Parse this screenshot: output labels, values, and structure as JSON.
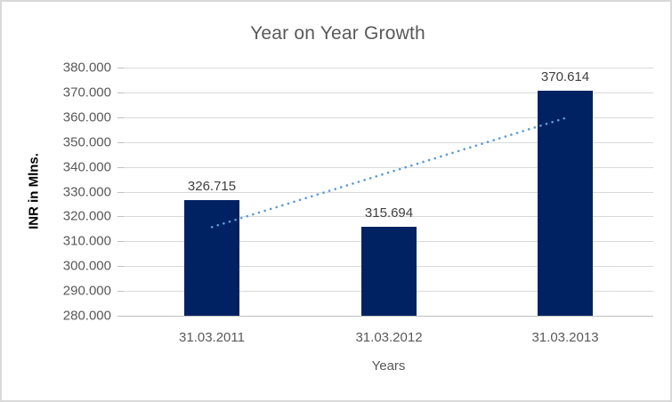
{
  "chart_data": {
    "type": "bar",
    "title": "Year on Year Growth",
    "xlabel": "Years",
    "ylabel": "INR in Mlns.",
    "categories": [
      "31.03.2011",
      "31.03.2012",
      "31.03.2013"
    ],
    "values": [
      326.715,
      315.694,
      370.614
    ],
    "value_labels": [
      "326.715",
      "315.694",
      "370.614"
    ],
    "ylim": [
      280,
      380
    ],
    "ytick_step": 10,
    "ytick_labels_top_to_bottom": [
      "380.000",
      "370.000",
      "360.000",
      "350.000",
      "340.000",
      "330.000",
      "320.000",
      "310.000",
      "300.000",
      "290.000",
      "280.000"
    ],
    "grid": true,
    "legend": "none",
    "trendline": {
      "type": "linear",
      "style": "dotted"
    },
    "colors": {
      "bar": "#002263",
      "trendline": "#5b9bd5",
      "gridline": "#d9d9d9",
      "axis_line": "#bfbfbf",
      "tick_label": "#595959",
      "title": "#595959",
      "data_label": "#404040",
      "y_axis_title": "#000000",
      "frame_border": "#d9d9d9",
      "background": "#ffffff"
    }
  }
}
